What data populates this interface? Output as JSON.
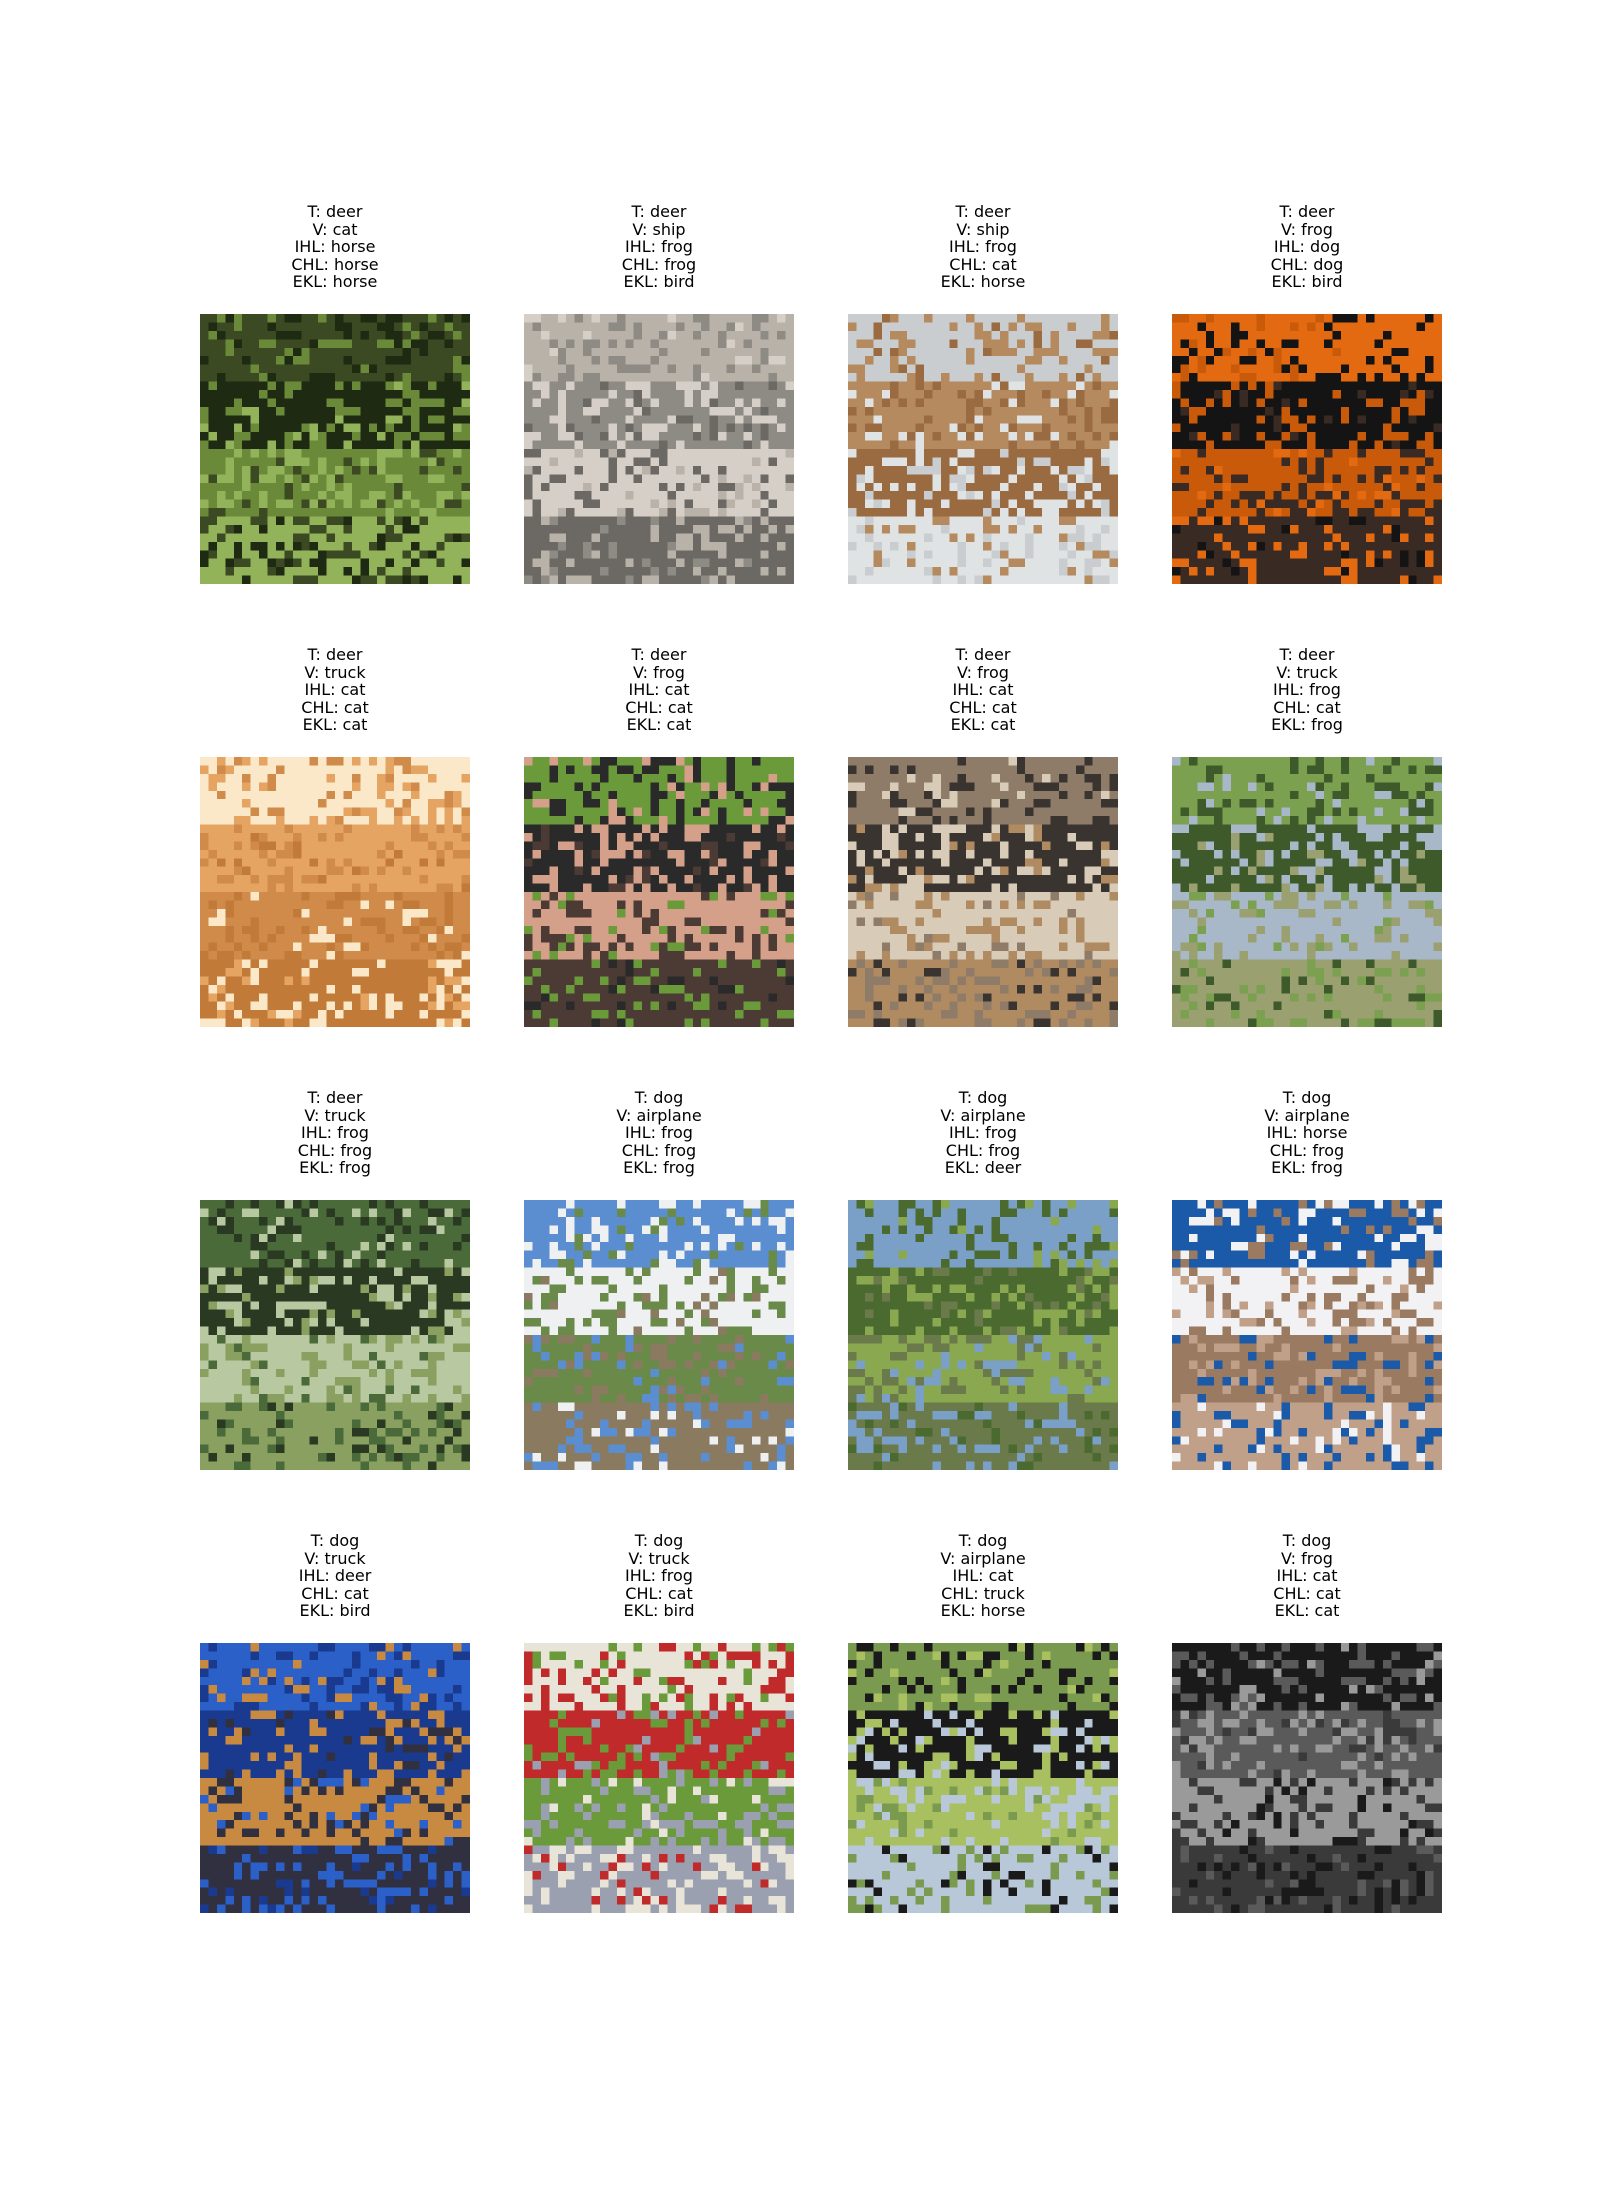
{
  "panels": [
    {
      "lines": [
        "T: deer",
        "V: cat",
        "IHL: horse",
        "CHL: horse",
        "EKL: horse"
      ],
      "image": "deer-in-forest-photo"
    },
    {
      "lines": [
        "T: deer",
        "V: ship",
        "IHL: frog",
        "CHL: frog",
        "EKL: bird"
      ],
      "image": "gray-furry-animal-photo"
    },
    {
      "lines": [
        "T: deer",
        "V: ship",
        "IHL: frog",
        "CHL: cat",
        "EKL: horse"
      ],
      "image": "brown-animal-on-shore-photo"
    },
    {
      "lines": [
        "T: deer",
        "V: frog",
        "IHL: dog",
        "CHL: dog",
        "EKL: bird"
      ],
      "image": "black-tshirt-orange-background-photo"
    },
    {
      "lines": [
        "T: deer",
        "V: truck",
        "IHL: cat",
        "CHL: cat",
        "EKL: cat"
      ],
      "image": "orange-desert-landscape-photo"
    },
    {
      "lines": [
        "T: deer",
        "V: frog",
        "IHL: cat",
        "CHL: cat",
        "EKL: cat"
      ],
      "image": "legs-on-grass-photo"
    },
    {
      "lines": [
        "T: deer",
        "V: frog",
        "IHL: cat",
        "CHL: cat",
        "EKL: cat"
      ],
      "image": "animals-group-photo"
    },
    {
      "lines": [
        "T: deer",
        "V: truck",
        "IHL: frog",
        "CHL: cat",
        "EKL: frog"
      ],
      "image": "car-among-trees-photo"
    },
    {
      "lines": [
        "T: deer",
        "V: truck",
        "IHL: frog",
        "CHL: frog",
        "EKL: frog"
      ],
      "image": "forest-field-photo"
    },
    {
      "lines": [
        "T: dog",
        "V: airplane",
        "IHL: frog",
        "CHL: frog",
        "EKL: frog"
      ],
      "image": "mountain-valley-photo"
    },
    {
      "lines": [
        "T: dog",
        "V: airplane",
        "IHL: frog",
        "CHL: frog",
        "EKL: deer"
      ],
      "image": "green-hillside-photo"
    },
    {
      "lines": [
        "T: dog",
        "V: airplane",
        "IHL: horse",
        "CHL: frog",
        "EKL: frog"
      ],
      "image": "dog-on-rocks-blue-sky-photo"
    },
    {
      "lines": [
        "T: dog",
        "V: truck",
        "IHL: deer",
        "CHL: cat",
        "EKL: bird"
      ],
      "image": "person-blue-clothes-with-dog-photo"
    },
    {
      "lines": [
        "T: dog",
        "V: truck",
        "IHL: frog",
        "CHL: cat",
        "EKL: bird"
      ],
      "image": "dogs-collage-photo"
    },
    {
      "lines": [
        "T: dog",
        "V: airplane",
        "IHL: cat",
        "CHL: truck",
        "EKL: horse"
      ],
      "image": "black-dogs-on-grass-photo"
    },
    {
      "lines": [
        "T: dog",
        "V: frog",
        "IHL: cat",
        "CHL: cat",
        "EKL: cat"
      ],
      "image": "grayscale-dog-face-photo"
    }
  ]
}
